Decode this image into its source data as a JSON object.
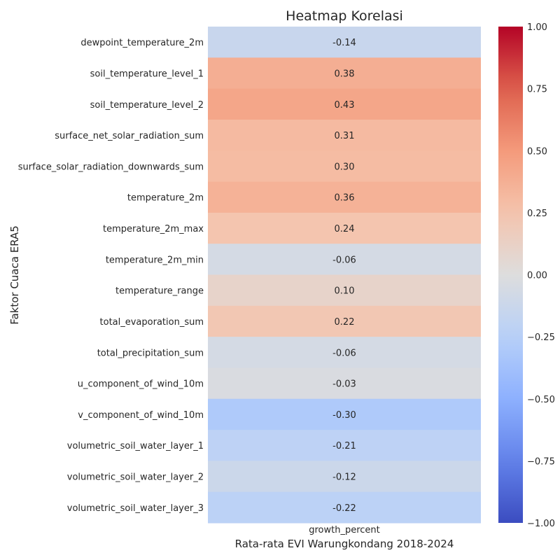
{
  "chart_data": {
    "type": "heatmap",
    "title": "Heatmap Korelasi",
    "xlabel": "Rata-rata EVI Warungkondang 2018-2024",
    "ylabel": "Faktor Cuaca ERA5",
    "columns": [
      "growth_percent"
    ],
    "rows": [
      "dewpoint_temperature_2m",
      "soil_temperature_level_1",
      "soil_temperature_level_2",
      "surface_net_solar_radiation_sum",
      "surface_solar_radiation_downwards_sum",
      "temperature_2m",
      "temperature_2m_max",
      "temperature_2m_min",
      "temperature_range",
      "total_evaporation_sum",
      "total_precipitation_sum",
      "u_component_of_wind_10m",
      "v_component_of_wind_10m",
      "volumetric_soil_water_layer_1",
      "volumetric_soil_water_layer_2",
      "volumetric_soil_water_layer_3"
    ],
    "values": [
      -0.14,
      0.38,
      0.43,
      0.31,
      0.3,
      0.36,
      0.24,
      -0.06,
      0.1,
      0.22,
      -0.06,
      -0.03,
      -0.3,
      -0.21,
      -0.12,
      -0.22
    ],
    "value_labels": [
      "-0.14",
      "0.38",
      "0.43",
      "0.31",
      "0.30",
      "0.36",
      "0.24",
      "-0.06",
      "0.10",
      "0.22",
      "-0.06",
      "-0.03",
      "-0.30",
      "-0.21",
      "-0.12",
      "-0.22"
    ],
    "colormap": "coolwarm",
    "vmin": -1.0,
    "vmax": 1.0,
    "colorbar_ticks": [
      1.0,
      0.75,
      0.5,
      0.25,
      0.0,
      -0.25,
      -0.5,
      -0.75,
      -1.0
    ],
    "colorbar_tick_labels": [
      "1.00",
      "0.75",
      "0.50",
      "0.25",
      "0.00",
      "−0.25",
      "−0.50",
      "−0.75",
      "−1.00"
    ]
  }
}
